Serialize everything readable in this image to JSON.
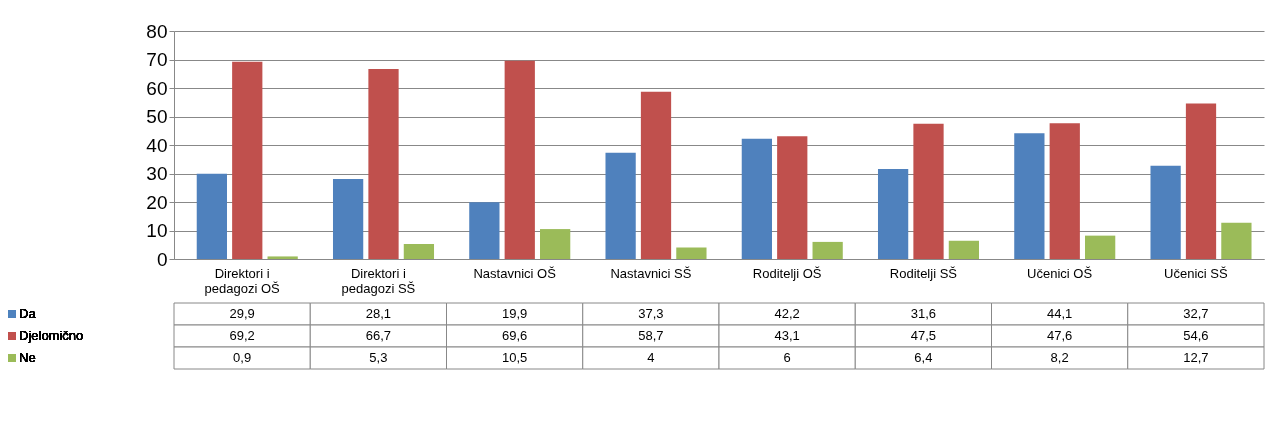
{
  "chart_data": {
    "type": "bar",
    "categories": [
      "Direktori i pedagozi OŠ",
      "Direktori i pedagozi SŠ",
      "Nastavnici OŠ",
      "Nastavnici SŠ",
      "Roditelji OŠ",
      "Roditelji SŠ",
      "Učenici OŠ",
      "Učenici SŠ"
    ],
    "series": [
      {
        "name": "Da",
        "color": "#4f81bd",
        "values": [
          29.9,
          28.1,
          19.9,
          37.3,
          42.2,
          31.6,
          44.1,
          32.7
        ],
        "value_labels": [
          "29,9",
          "28,1",
          "19,9",
          "37,3",
          "42,2",
          "31,6",
          "44,1",
          "32,7"
        ]
      },
      {
        "name": "Djelomično",
        "color": "#c0504d",
        "values": [
          69.2,
          66.7,
          69.6,
          58.7,
          43.1,
          47.5,
          47.6,
          54.6
        ],
        "value_labels": [
          "69,2",
          "66,7",
          "69,6",
          "58,7",
          "43,1",
          "47,5",
          "47,6",
          "54,6"
        ]
      },
      {
        "name": "Ne",
        "color": "#9bbb59",
        "values": [
          0.9,
          5.3,
          10.5,
          4,
          6,
          6.4,
          8.2,
          12.7
        ],
        "value_labels": [
          "0,9",
          "5,3",
          "10,5",
          "4",
          "6",
          "6,4",
          "8,2",
          "12,7"
        ]
      }
    ],
    "ylim": [
      0,
      80
    ],
    "yticks": [
      0,
      10,
      20,
      30,
      40,
      50,
      60,
      70,
      80
    ],
    "grid": "y",
    "legend": "left"
  }
}
